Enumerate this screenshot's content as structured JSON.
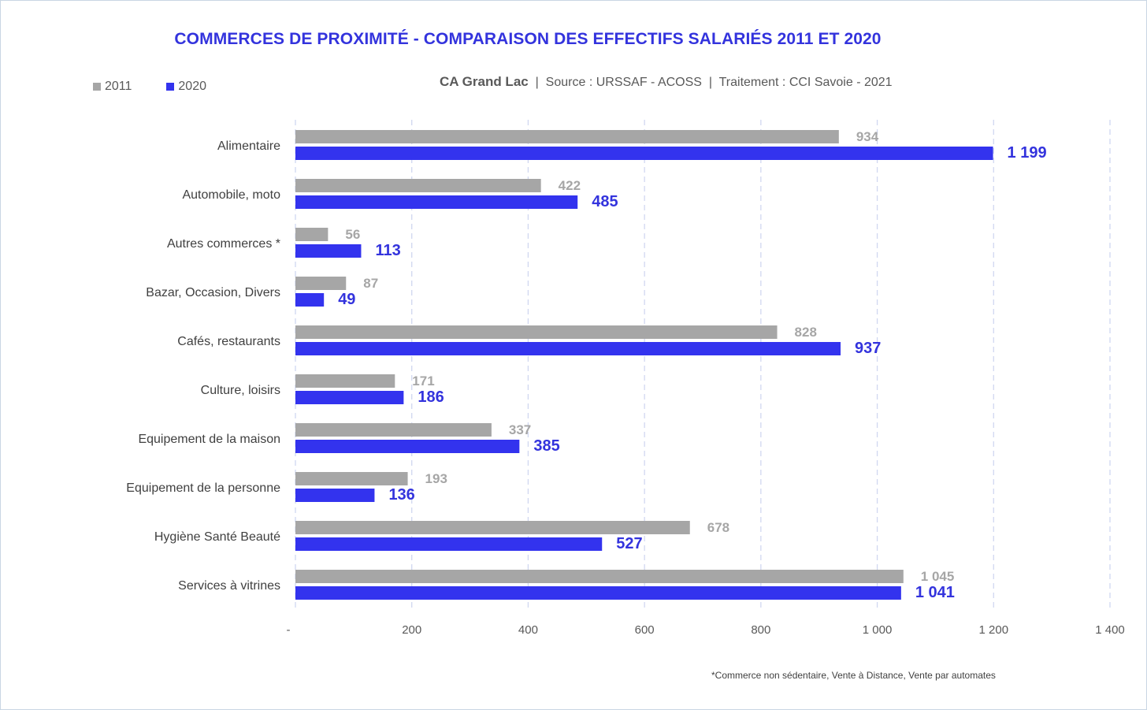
{
  "colors": {
    "s2011": "#a6a6a6",
    "s2020": "#3333ee",
    "title": "#3333dd"
  },
  "title": "COMMERCES DE PROXIMITÉ - COMPARAISON DES EFFECTIFS SALARIÉS 2011 ET 2020",
  "subtitle": {
    "place": "CA Grand Lac",
    "sep1": "  |  ",
    "source": "Source : URSSAF - ACOSS",
    "sep2": "  |  ",
    "treatment": "Traitement : CCI Savoie - 2021"
  },
  "legend": {
    "s2011": "2011",
    "s2020": "2020"
  },
  "footnote": "*Commerce non sédentaire, Vente à Distance, Vente par automates",
  "chart_data": {
    "type": "bar",
    "orientation": "horizontal",
    "title": "COMMERCES DE PROXIMITÉ - COMPARAISON DES EFFECTIFS SALARIÉS 2011 ET 2020",
    "categories": [
      "Alimentaire",
      "Automobile, moto",
      "Autres commerces *",
      "Bazar, Occasion, Divers",
      "Cafés, restaurants",
      "Culture, loisirs",
      "Equipement de la maison",
      "Equipement de la personne",
      "Hygiène Santé Beauté",
      "Services à vitrines"
    ],
    "series": [
      {
        "name": "2011",
        "values": [
          934,
          422,
          56,
          87,
          828,
          171,
          337,
          193,
          678,
          1045
        ],
        "labels": [
          "934",
          "422",
          "56",
          "87",
          "828",
          "171",
          "337",
          "193",
          "678",
          "1 045"
        ]
      },
      {
        "name": "2020",
        "values": [
          1199,
          485,
          113,
          49,
          937,
          186,
          385,
          136,
          527,
          1041
        ],
        "labels": [
          "1 199",
          "485",
          "113",
          "49",
          "937",
          "186",
          "385",
          "136",
          "527",
          "1 041"
        ]
      }
    ],
    "xlim": [
      0,
      1400
    ],
    "xticks": [
      0,
      200,
      400,
      600,
      800,
      1000,
      1200,
      1400
    ],
    "xtick_labels": [
      "-",
      "200",
      "400",
      "600",
      "800",
      "1 000",
      "1 200",
      "1 400"
    ],
    "grid": "vertical dashed",
    "legend_position": "top-left"
  }
}
